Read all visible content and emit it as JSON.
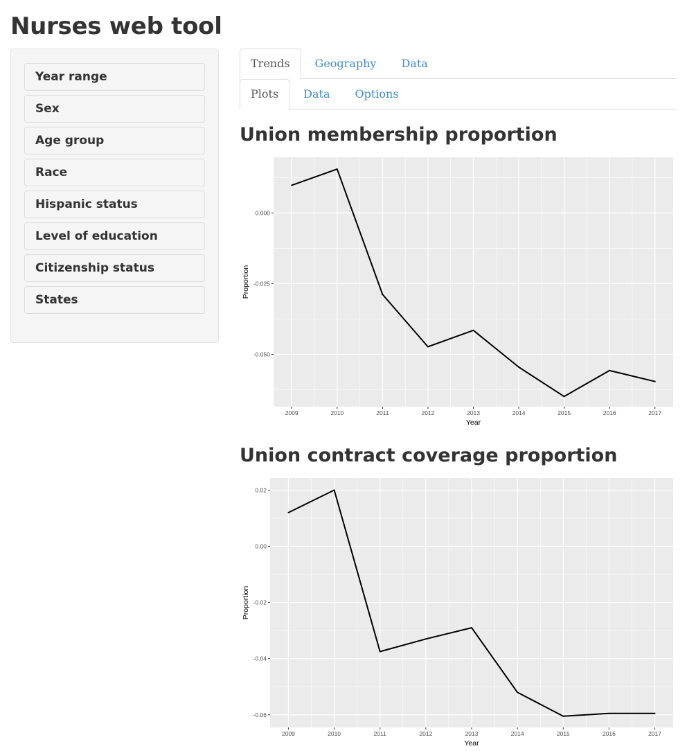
{
  "app": {
    "title": "Nurses web tool"
  },
  "sidebar": {
    "filters": [
      "Year range",
      "Sex",
      "Age group",
      "Race",
      "Hispanic status",
      "Level of education",
      "Citizenship status",
      "States"
    ]
  },
  "tabs": {
    "main": [
      {
        "label": "Trends",
        "active": true
      },
      {
        "label": "Geography",
        "active": false
      },
      {
        "label": "Data",
        "active": false
      }
    ],
    "sub": [
      {
        "label": "Plots",
        "active": true
      },
      {
        "label": "Data",
        "active": false
      },
      {
        "label": "Options",
        "active": false
      }
    ]
  },
  "colors": {
    "panel_bg": "#ebebeb",
    "grid": "#ffffff",
    "line": "#000000",
    "link": "#428bca"
  },
  "plots": [
    {
      "title": "Union membership proportion"
    },
    {
      "title": "Union contract coverage proportion"
    }
  ],
  "chart_data": [
    {
      "type": "line",
      "title": "Union membership proportion",
      "xlabel": "Year",
      "ylabel": "Proportion",
      "x": [
        2009,
        2010,
        2011,
        2012,
        2013,
        2014,
        2015,
        2016,
        2017
      ],
      "values": [
        0.0098,
        0.0155,
        -0.0288,
        -0.0473,
        -0.0415,
        -0.0545,
        -0.0649,
        -0.0557,
        -0.0596
      ],
      "ylim": [
        -0.0685,
        0.0197
      ],
      "yticks": [
        0.0,
        -0.025,
        -0.05
      ],
      "ytick_labels": [
        "0.000",
        "-0.025",
        "-0.050"
      ],
      "xtick_labels": [
        "2009",
        "2010",
        "2011",
        "2012",
        "2013",
        "2014",
        "2015",
        "2016",
        "2017"
      ],
      "grid": true,
      "legend": "none"
    },
    {
      "type": "line",
      "title": "Union contract coverage proportion",
      "xlabel": "Year",
      "ylabel": "Proportion",
      "x": [
        2009,
        2010,
        2011,
        2012,
        2013,
        2014,
        2015,
        2016,
        2017
      ],
      "values": [
        0.012,
        0.02,
        -0.0375,
        -0.033,
        -0.029,
        -0.052,
        -0.0605,
        -0.0595,
        -0.0595
      ],
      "ylim": [
        -0.0645,
        0.0243
      ],
      "yticks": [
        0.02,
        0.0,
        -0.02,
        -0.04,
        -0.06
      ],
      "ytick_labels": [
        "0.02",
        "0.00",
        "-0.02",
        "-0.04",
        "-0.06"
      ],
      "xtick_labels": [
        "2009",
        "2010",
        "2011",
        "2012",
        "2013",
        "2014",
        "2015",
        "2016",
        "2017"
      ],
      "grid": true,
      "legend": "none"
    }
  ]
}
